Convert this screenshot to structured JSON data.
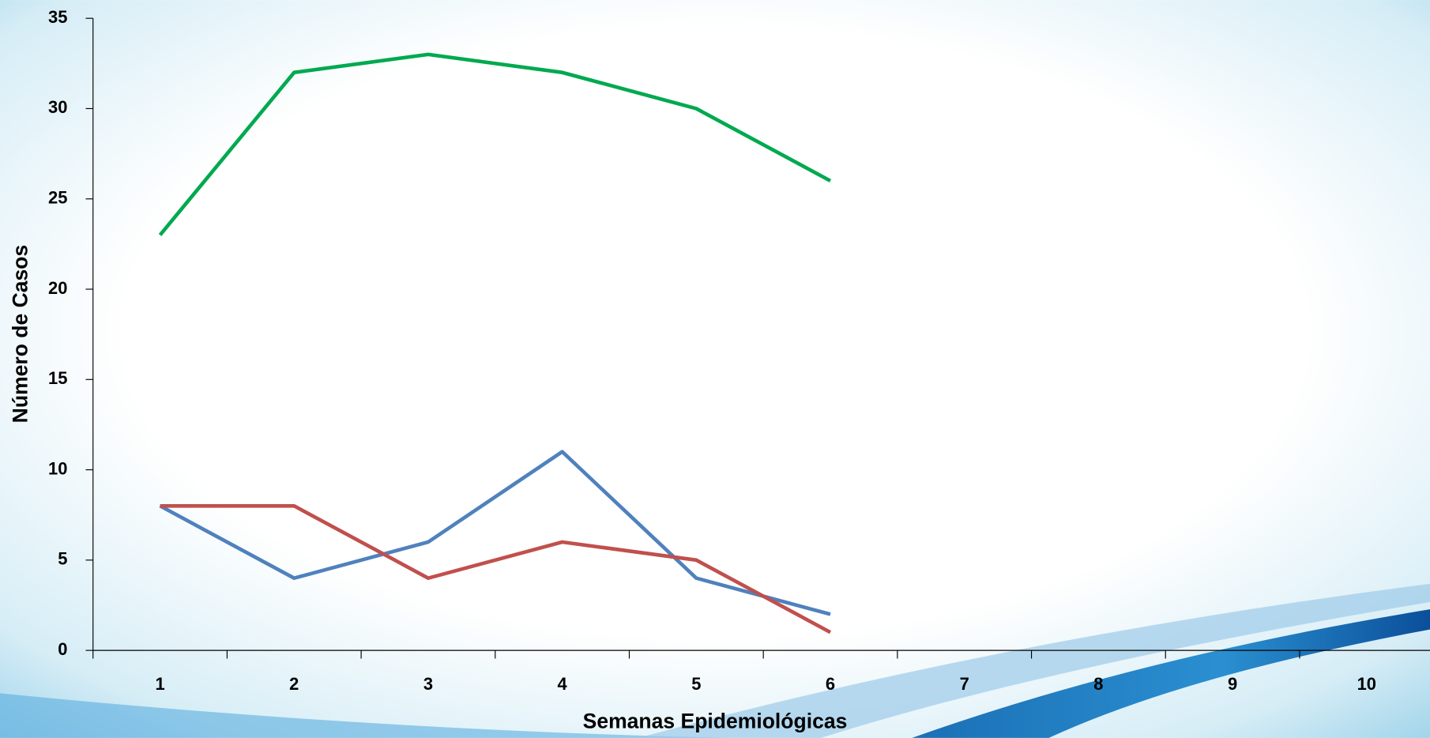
{
  "chart_data": {
    "type": "line",
    "x_label": "Semanas Epidemiológicas",
    "y_label": "Número de Casos",
    "categories": [
      "1",
      "2",
      "3",
      "4",
      "5",
      "6",
      "7",
      "8",
      "9",
      "10"
    ],
    "series": [
      {
        "color": "#00a94f",
        "values": [
          23,
          32,
          33,
          32,
          30,
          26,
          null,
          null,
          null,
          null
        ]
      },
      {
        "color": "#4f81bd",
        "values": [
          8,
          4,
          6,
          11,
          4,
          2,
          null,
          null,
          null,
          null
        ]
      },
      {
        "color": "#c0504d",
        "values": [
          8,
          8,
          4,
          6,
          5,
          1,
          null,
          null,
          null,
          null
        ]
      }
    ],
    "ylim": [
      0,
      35
    ],
    "yticks": [
      0,
      5,
      10,
      15,
      20,
      25,
      30,
      35
    ],
    "grid": false
  }
}
